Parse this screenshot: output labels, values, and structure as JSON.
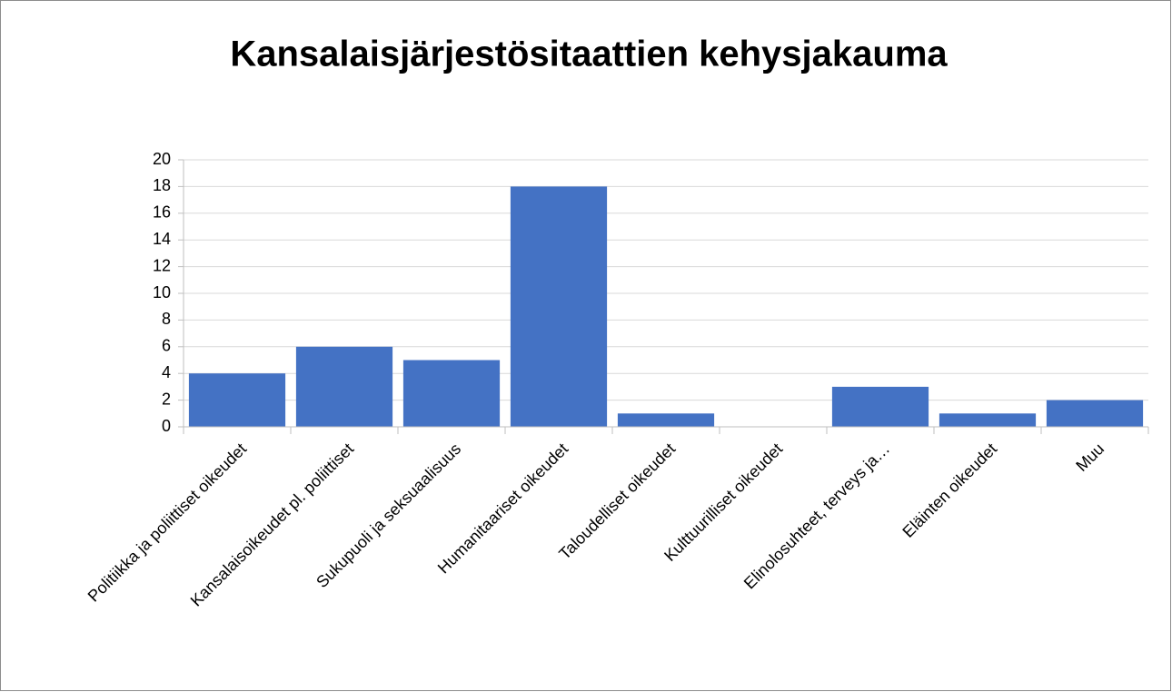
{
  "chart_data": {
    "type": "bar",
    "title": "Kansalaisjärjestösitaattien kehysjakauma",
    "categories": [
      "Politiikka ja poliittiset oikeudet",
      "Kansalaisoikeudet pl. poliittiset",
      "Sukupuoli ja seksuaalisuus",
      "Humanitaariset oikeudet",
      "Taloudelliset oikeudet",
      "Kulttuurilliset oikeudet",
      "Elinolosuhteet, terveys ja…",
      "Eläinten oikeudet",
      "Muu"
    ],
    "values": [
      4,
      6,
      5,
      18,
      1,
      0,
      3,
      1,
      2
    ],
    "color": "#4472c4",
    "ylim": [
      0,
      20
    ],
    "yticks": [
      0,
      2,
      4,
      6,
      8,
      10,
      12,
      14,
      16,
      18,
      20
    ],
    "grid": true
  }
}
